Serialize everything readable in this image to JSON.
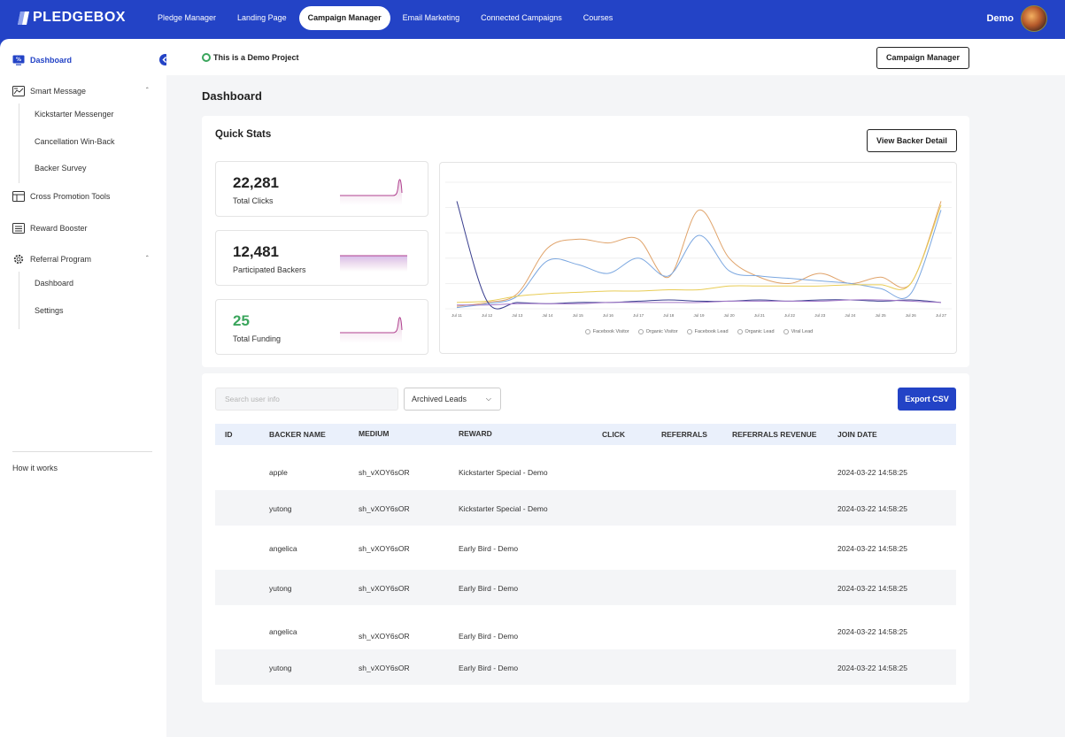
{
  "brand": {
    "name": "PLEDGEBOX"
  },
  "nav": {
    "items": [
      {
        "label": "Pledge Manager"
      },
      {
        "label": "Landing Page"
      },
      {
        "label": "Campaign Manager",
        "active": true
      },
      {
        "label": "Email Marketing"
      },
      {
        "label": "Connected Campaigns"
      },
      {
        "label": "Courses"
      }
    ],
    "user_name": "Demo"
  },
  "sidebar": {
    "dashboard": "Dashboard",
    "smart_message": "Smart Message",
    "smart_message_sub": [
      "Kickstarter Messenger",
      "Cancellation Win-Back",
      "Backer Survey"
    ],
    "cross_promotion": "Cross Promotion Tools",
    "reward_booster": "Reward Booster",
    "referral_program": "Referral Program",
    "referral_sub": [
      "Dashboard",
      "Settings"
    ],
    "how_it_works": "How it  works"
  },
  "subbar": {
    "demo_text": "This is a Demo Project",
    "campaign_button": "Campaign Manager"
  },
  "page": {
    "title": "Dashboard"
  },
  "quick_stats": {
    "title": "Quick Stats",
    "view_button": "View Backer Detail",
    "stats": [
      {
        "value": "22,281",
        "label": "Total Clicks"
      },
      {
        "value": "12,481",
        "label": "Participated Backers"
      },
      {
        "value": "25",
        "label": "Total Funding"
      }
    ]
  },
  "chart_data": {
    "type": "line",
    "x": [
      "Jul 11",
      "Jul 12",
      "Jul 13",
      "Jul 14",
      "Jul 15",
      "Jul 16",
      "Jul 17",
      "Jul 18",
      "Jul 19",
      "Jul 20",
      "Jul 21",
      "Jul 22",
      "Jul 23",
      "Jul 24",
      "Jul 25",
      "Jul 26",
      "Jul 27"
    ],
    "series": [
      {
        "name": "Facebook Visitor",
        "color": "#e0a36a",
        "values": [
          2,
          5,
          12,
          48,
          55,
          52,
          55,
          25,
          78,
          40,
          25,
          20,
          28,
          20,
          25,
          20,
          85
        ]
      },
      {
        "name": "Organic Visitor",
        "color": "#7ba7e0",
        "values": [
          1,
          4,
          10,
          38,
          35,
          28,
          40,
          26,
          58,
          30,
          26,
          24,
          22,
          20,
          16,
          12,
          78
        ]
      },
      {
        "name": "Facebook Lead",
        "color": "#e8cc55",
        "values": [
          5,
          6,
          10,
          12,
          13,
          14,
          14,
          15,
          15,
          18,
          18,
          18,
          18,
          19,
          19,
          20,
          82
        ]
      },
      {
        "name": "Organic Lead",
        "color": "#3a3f8f",
        "values": [
          85,
          6,
          5,
          4,
          5,
          5,
          6,
          7,
          6,
          6,
          7,
          6,
          7,
          7,
          6,
          7,
          5
        ]
      },
      {
        "name": "Viral Lead",
        "color": "#a478c8",
        "values": [
          3,
          3,
          4,
          4,
          4,
          5,
          5,
          5,
          5,
          6,
          6,
          6,
          6,
          7,
          7,
          6,
          5
        ]
      }
    ],
    "ylim": [
      0,
      100
    ],
    "grid": true,
    "legend": "bottom"
  },
  "table": {
    "search_placeholder": "Search user info",
    "filter_value": "Archived Leads",
    "export_button": "Export CSV",
    "columns": [
      "ID",
      "BACKER NAME",
      "MEDIUM",
      "REWARD",
      "CLICK",
      "REFERRALS",
      "REFERRALS REVENUE",
      "JOIN DATE"
    ],
    "rows": [
      {
        "id": "",
        "name": "apple",
        "medium": "sh_vXOY6sOR",
        "reward": "Kickstarter Special - Demo",
        "click": "",
        "referrals": "",
        "revenue": "",
        "join": "2024-03-22 14:58:25"
      },
      {
        "id": "",
        "name": "yutong",
        "medium": "sh_vXOY6sOR",
        "reward": "Kickstarter Special - Demo",
        "click": "",
        "referrals": "",
        "revenue": "",
        "join": "2024-03-22 14:58:25"
      },
      {
        "id": "",
        "name": "angelica",
        "medium": "sh_vXOY6sOR",
        "reward": "Early Bird - Demo",
        "click": "",
        "referrals": "",
        "revenue": "",
        "join": "2024-03-22 14:58:25"
      },
      {
        "id": "",
        "name": "yutong",
        "medium": "sh_vXOY6sOR",
        "reward": "Early Bird - Demo",
        "click": "",
        "referrals": "",
        "revenue": "",
        "join": "2024-03-22 14:58:25"
      },
      {
        "id": "",
        "name": "angelica",
        "medium": "sh_vXOY6sOR",
        "reward": "Early Bird - Demo",
        "click": "",
        "referrals": "",
        "revenue": "",
        "join": "2024-03-22 14:58:25"
      },
      {
        "id": "",
        "name": "yutong",
        "medium": "sh_vXOY6sOR",
        "reward": "Early Bird - Demo",
        "click": "",
        "referrals": "",
        "revenue": "",
        "join": "2024-03-22 14:58:25"
      }
    ]
  },
  "colors": {
    "brand": "#2343c6",
    "green": "#3aa55c",
    "spark": "#b0418f"
  }
}
